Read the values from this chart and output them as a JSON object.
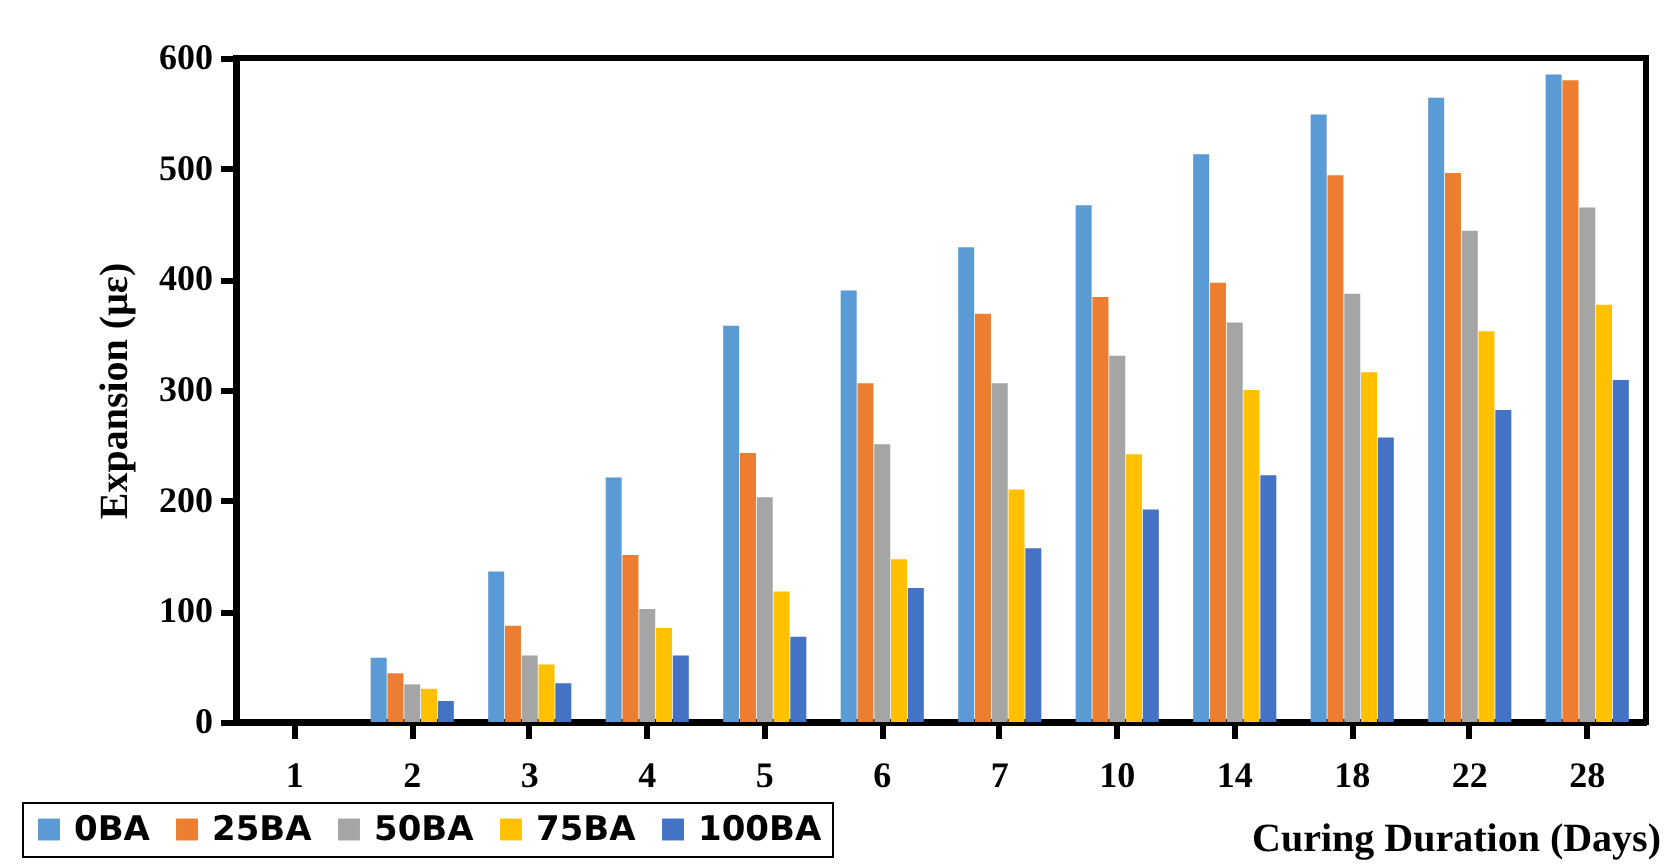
{
  "chart_data": {
    "type": "bar",
    "xlabel": "Curing Duration (Days)",
    "ylabel": "Expansion (με)",
    "categories": [
      "1",
      "2",
      "3",
      "4",
      "5",
      "6",
      "7",
      "10",
      "14",
      "18",
      "22",
      "28"
    ],
    "series": [
      {
        "name": "0BA",
        "color": "#5b9bd5",
        "values": [
          0,
          58,
          136,
          221,
          358,
          390,
          429,
          467,
          513,
          549,
          564,
          585
        ]
      },
      {
        "name": "25BA",
        "color": "#ed7d31",
        "values": [
          0,
          44,
          87,
          151,
          243,
          306,
          369,
          384,
          397,
          494,
          496,
          580
        ]
      },
      {
        "name": "50BA",
        "color": "#a5a5a5",
        "values": [
          0,
          34,
          60,
          102,
          203,
          251,
          306,
          331,
          361,
          387,
          444,
          465
        ]
      },
      {
        "name": "75BA",
        "color": "#ffc000",
        "values": [
          0,
          30,
          52,
          85,
          118,
          147,
          210,
          242,
          300,
          316,
          353,
          377
        ]
      },
      {
        "name": "100BA",
        "color": "#4472c4",
        "values": [
          0,
          19,
          35,
          60,
          77,
          121,
          157,
          192,
          223,
          257,
          282,
          309
        ]
      }
    ],
    "ylim": [
      0,
      600
    ],
    "yticks": [
      0,
      100,
      200,
      300,
      400,
      500,
      600
    ],
    "legend": "bottom left"
  }
}
